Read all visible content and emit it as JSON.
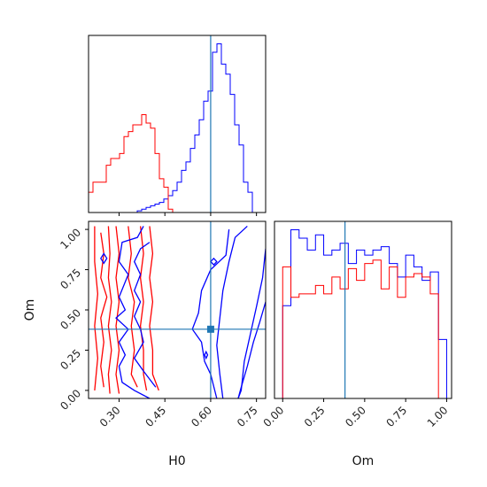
{
  "chart_data": {
    "type": "corner",
    "colors": {
      "blue": "#0000ff",
      "red": "#ff0000",
      "truth": "#1f77b4"
    },
    "truth": {
      "H0": 0.6,
      "Om": 0.38
    },
    "H0_hist": {
      "xlim": [
        0.2,
        0.78
      ],
      "bin_width": 0.0145,
      "bin_start": 0.2,
      "blue": [
        0.0,
        0.0,
        0.0,
        0.0,
        0.0,
        0.0,
        0.0,
        0.0,
        0.0,
        0.0,
        0.0,
        0.01,
        0.02,
        0.03,
        0.04,
        0.05,
        0.06,
        0.08,
        0.1,
        0.13,
        0.18,
        0.25,
        0.3,
        0.38,
        0.46,
        0.55,
        0.66,
        0.72,
        0.95,
        1.0,
        0.88,
        0.82,
        0.7,
        0.52,
        0.4,
        0.18,
        0.12
      ],
      "red": [
        0.12,
        0.18,
        0.18,
        0.18,
        0.28,
        0.32,
        0.32,
        0.35,
        0.45,
        0.48,
        0.52,
        0.52,
        0.58,
        0.53,
        0.5,
        0.35,
        0.2,
        0.15,
        0.02,
        0.0
      ]
    },
    "Om_hist": {
      "xlim": [
        -0.05,
        1.03
      ],
      "bin_width": 0.05,
      "bin_start": 0.0,
      "blue": [
        0.55,
        1.0,
        0.95,
        0.88,
        0.97,
        0.85,
        0.88,
        0.92,
        0.8,
        0.88,
        0.85,
        0.88,
        0.9,
        0.8,
        0.72,
        0.85,
        0.78,
        0.7,
        0.75,
        0.35
      ],
      "red": [
        0.78,
        0.6,
        0.62,
        0.62,
        0.67,
        0.62,
        0.72,
        0.65,
        0.77,
        0.7,
        0.8,
        0.82,
        0.65,
        0.78,
        0.6,
        0.72,
        0.74,
        0.72,
        0.62,
        0.0
      ]
    },
    "joint": {
      "xlim": [
        0.2,
        0.78
      ],
      "ylim": [
        -0.05,
        1.05
      ],
      "blue_contours": [
        [
          [
            0.72,
            1.02
          ],
          [
            0.68,
            0.95
          ],
          [
            0.66,
            0.8
          ],
          [
            0.64,
            0.62
          ],
          [
            0.63,
            0.45
          ],
          [
            0.62,
            0.28
          ],
          [
            0.63,
            0.1
          ],
          [
            0.64,
            -0.05
          ]
        ],
        [
          [
            0.78,
            0.88
          ],
          [
            0.77,
            0.7
          ],
          [
            0.75,
            0.52
          ],
          [
            0.73,
            0.35
          ],
          [
            0.71,
            0.18
          ],
          [
            0.7,
            0.0
          ],
          [
            0.69,
            -0.05
          ]
        ],
        [
          [
            0.78,
            0.55
          ],
          [
            0.76,
            0.42
          ],
          [
            0.74,
            0.3
          ],
          [
            0.72,
            0.15
          ],
          [
            0.7,
            0.02
          ],
          [
            0.69,
            -0.05
          ]
        ],
        [
          [
            0.66,
            1.0
          ],
          [
            0.65,
            0.84
          ],
          [
            0.6,
            0.75
          ],
          [
            0.57,
            0.62
          ],
          [
            0.56,
            0.48
          ],
          [
            0.54,
            0.38
          ],
          [
            0.57,
            0.3
          ],
          [
            0.58,
            0.18
          ],
          [
            0.6,
            0.1
          ],
          [
            0.62,
            -0.05
          ]
        ],
        [
          [
            0.38,
            1.02
          ],
          [
            0.36,
            0.95
          ],
          [
            0.31,
            0.92
          ],
          [
            0.3,
            0.8
          ],
          [
            0.33,
            0.72
          ],
          [
            0.3,
            0.58
          ],
          [
            0.32,
            0.5
          ],
          [
            0.29,
            0.45
          ],
          [
            0.33,
            0.38
          ],
          [
            0.3,
            0.3
          ],
          [
            0.32,
            0.22
          ],
          [
            0.3,
            0.15
          ],
          [
            0.31,
            0.05
          ],
          [
            0.35,
            0.0
          ],
          [
            0.4,
            -0.05
          ]
        ],
        [
          [
            0.4,
            0.92
          ],
          [
            0.37,
            0.88
          ],
          [
            0.35,
            0.8
          ],
          [
            0.37,
            0.72
          ],
          [
            0.35,
            0.62
          ],
          [
            0.37,
            0.55
          ],
          [
            0.35,
            0.46
          ],
          [
            0.37,
            0.38
          ],
          [
            0.38,
            0.3
          ],
          [
            0.35,
            0.2
          ],
          [
            0.38,
            0.12
          ],
          [
            0.42,
            0.02
          ]
        ]
      ],
      "blue_loops": [
        [
          [
            0.24,
            0.82
          ],
          [
            0.25,
            0.79
          ],
          [
            0.26,
            0.82
          ],
          [
            0.25,
            0.85
          ]
        ],
        [
          [
            0.6,
            0.8
          ],
          [
            0.61,
            0.78
          ],
          [
            0.62,
            0.8
          ],
          [
            0.61,
            0.82
          ]
        ],
        [
          [
            0.58,
            0.22
          ],
          [
            0.585,
            0.2
          ],
          [
            0.59,
            0.22
          ],
          [
            0.585,
            0.24
          ]
        ]
      ],
      "red_contours": [
        [
          [
            0.22,
            1.02
          ],
          [
            0.22,
            0.8
          ],
          [
            0.23,
            0.6
          ],
          [
            0.22,
            0.4
          ],
          [
            0.23,
            0.2
          ],
          [
            0.22,
            0.0
          ]
        ],
        [
          [
            0.24,
            0.98
          ],
          [
            0.25,
            0.85
          ],
          [
            0.24,
            0.7
          ],
          [
            0.26,
            0.58
          ],
          [
            0.24,
            0.45
          ],
          [
            0.25,
            0.3
          ],
          [
            0.24,
            0.15
          ],
          [
            0.25,
            0.02
          ]
        ],
        [
          [
            0.265,
            1.02
          ],
          [
            0.27,
            0.85
          ],
          [
            0.265,
            0.7
          ],
          [
            0.275,
            0.55
          ],
          [
            0.265,
            0.4
          ],
          [
            0.275,
            0.25
          ],
          [
            0.265,
            0.1
          ],
          [
            0.27,
            -0.02
          ]
        ],
        [
          [
            0.29,
            1.02
          ],
          [
            0.3,
            0.85
          ],
          [
            0.29,
            0.7
          ],
          [
            0.3,
            0.55
          ],
          [
            0.29,
            0.4
          ],
          [
            0.3,
            0.25
          ],
          [
            0.29,
            0.1
          ],
          [
            0.3,
            -0.02
          ]
        ],
        [
          [
            0.33,
            1.02
          ],
          [
            0.34,
            0.85
          ],
          [
            0.33,
            0.7
          ],
          [
            0.35,
            0.55
          ],
          [
            0.34,
            0.4
          ],
          [
            0.35,
            0.25
          ],
          [
            0.34,
            0.1
          ],
          [
            0.36,
            0.02
          ]
        ],
        [
          [
            0.37,
            1.02
          ],
          [
            0.38,
            0.85
          ],
          [
            0.37,
            0.7
          ],
          [
            0.38,
            0.55
          ],
          [
            0.37,
            0.4
          ],
          [
            0.38,
            0.25
          ],
          [
            0.38,
            0.1
          ],
          [
            0.39,
            0.0
          ]
        ],
        [
          [
            0.4,
            1.02
          ],
          [
            0.41,
            0.85
          ],
          [
            0.4,
            0.7
          ],
          [
            0.41,
            0.55
          ],
          [
            0.4,
            0.4
          ],
          [
            0.41,
            0.25
          ],
          [
            0.41,
            0.1
          ],
          [
            0.43,
            0.0
          ]
        ]
      ]
    },
    "H0_ticks": [
      0.3,
      0.45,
      0.6,
      0.75
    ],
    "H0_tick_labels": [
      "0.30",
      "0.45",
      "0.60",
      "0.75"
    ],
    "Om_ticks": [
      0.0,
      0.25,
      0.5,
      0.75,
      1.0
    ],
    "Om_tick_labels": [
      "0.00",
      "0.25",
      "0.50",
      "0.75",
      "1.00"
    ],
    "xlabel_H0": "H0",
    "xlabel_Om": "Om",
    "ylabel_Om": "Om"
  }
}
